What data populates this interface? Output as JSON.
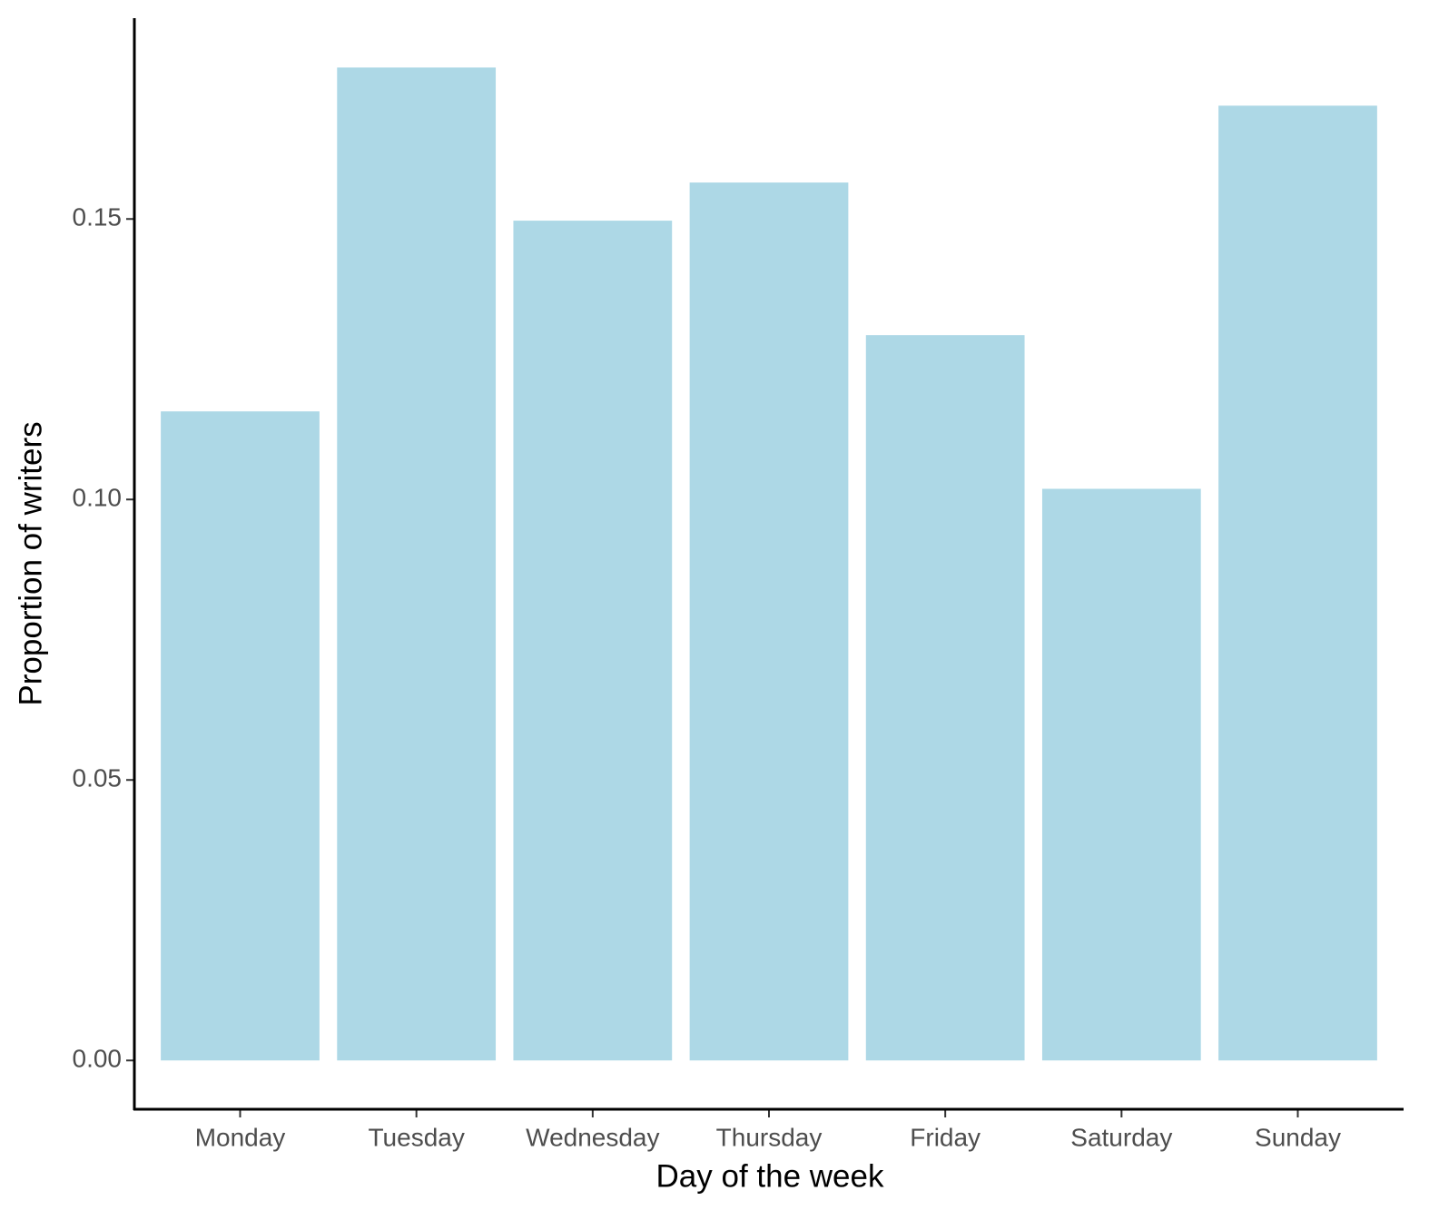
{
  "chart_data": {
    "type": "bar",
    "x_label": "Day of the week",
    "y_label": "Proportion of writers",
    "categories": [
      "Monday",
      "Tuesday",
      "Wednesday",
      "Thursday",
      "Friday",
      "Saturday",
      "Sunday"
    ],
    "values": [
      0.1157,
      0.177,
      0.1497,
      0.1565,
      0.1293,
      0.1019,
      0.1702
    ],
    "color": "#add8e6",
    "ylim": [
      -0.0087,
      0.1858
    ],
    "yticks": [
      {
        "value": 0,
        "label": "0.00"
      },
      0.05,
      {
        "value": 0.1,
        "label": "0.10"
      },
      0.15
    ],
    "grid": false
  }
}
